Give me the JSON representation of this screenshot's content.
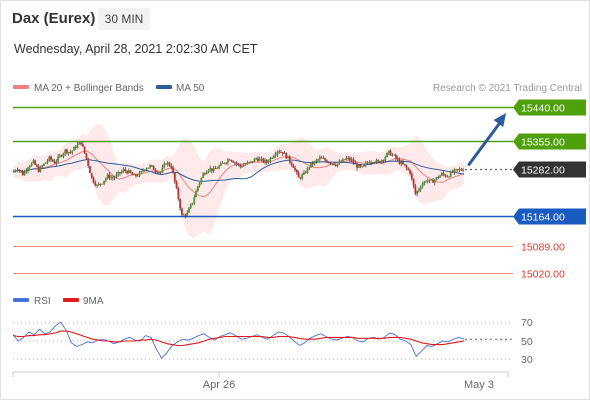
{
  "header": {
    "title": "Dax (Eurex)",
    "timeframe": "30 MIN",
    "datetime": "Wednesday, April 28, 2021 2:02:30 AM CET"
  },
  "chart_data": {
    "type": "candlestick",
    "legend": [
      {
        "label": "MA 20 + Bollinger Bands",
        "color": "#f08080"
      },
      {
        "label": "MA 50",
        "color": "#2e5c9a"
      }
    ],
    "credit": "Research © 2021 Trading Central",
    "y_range": [
      14970,
      15470
    ],
    "levels": [
      {
        "value": 15440.0,
        "label": "15440.00",
        "kind": "resistance",
        "color": "#4ea10d"
      },
      {
        "value": 15355.0,
        "label": "15355.00",
        "kind": "resistance",
        "color": "#4ea10d"
      },
      {
        "value": 15282.0,
        "label": "15282.00",
        "kind": "last",
        "color": "#333333"
      },
      {
        "value": 15164.0,
        "label": "15164.00",
        "kind": "support",
        "color": "#1a5bc2"
      },
      {
        "value": 15089.0,
        "label": "15089.00",
        "kind": "support",
        "color": "#e23b2e"
      },
      {
        "value": 15020.0,
        "label": "15020.00",
        "kind": "support",
        "color": "#e23b2e"
      }
    ],
    "x_ticks": [
      "Apr 26",
      "May 3"
    ],
    "rsi": {
      "legend": [
        {
          "label": "RSI",
          "color": "#4a73d9"
        },
        {
          "label": "9MA",
          "color": "#e31b1b"
        }
      ],
      "ticks": [
        "70",
        "50",
        "30"
      ],
      "range": [
        20,
        80
      ]
    },
    "price_path": [
      15275,
      15285,
      15270,
      15290,
      15300,
      15280,
      15295,
      15310,
      15300,
      15315,
      15330,
      15325,
      15340,
      15350,
      15310,
      15260,
      15240,
      15250,
      15265,
      15260,
      15270,
      15280,
      15275,
      15265,
      15270,
      15285,
      15290,
      15280,
      15275,
      15300,
      15290,
      15230,
      15165,
      15170,
      15200,
      15240,
      15270,
      15285,
      15280,
      15290,
      15300,
      15310,
      15300,
      15290,
      15295,
      15300,
      15310,
      15305,
      15300,
      15315,
      15330,
      15325,
      15310,
      15290,
      15260,
      15270,
      15290,
      15300,
      15310,
      15305,
      15300,
      15295,
      15300,
      15310,
      15305,
      15290,
      15285,
      15300,
      15305,
      15300,
      15310,
      15325,
      15315,
      15300,
      15290,
      15275,
      15220,
      15240,
      15255,
      15250,
      15260,
      15270,
      15265,
      15275,
      15280,
      15282
    ],
    "rsi_path": [
      57,
      50,
      54,
      60,
      57,
      63,
      58,
      60,
      67,
      71,
      62,
      48,
      44,
      46,
      49,
      48,
      51,
      52,
      50,
      47,
      49,
      52,
      54,
      51,
      50,
      56,
      54,
      41,
      31,
      37,
      45,
      49,
      52,
      51,
      53,
      56,
      58,
      54,
      51,
      55,
      57,
      59,
      56,
      52,
      53,
      55,
      57,
      54,
      52,
      56,
      60,
      59,
      55,
      50,
      45,
      48,
      53,
      56,
      58,
      55,
      52,
      51,
      53,
      55,
      54,
      50,
      49,
      53,
      54,
      52,
      54,
      59,
      57,
      52,
      50,
      46,
      33,
      39,
      45,
      44,
      47,
      50,
      49,
      52,
      54,
      52
    ],
    "rsi_ma_path": [
      56,
      55,
      55,
      56,
      56,
      57,
      57,
      58,
      59,
      61,
      61,
      60,
      58,
      56,
      54,
      52,
      51,
      50,
      50,
      49,
      49,
      50,
      50,
      50,
      51,
      51,
      52,
      51,
      49,
      47,
      46,
      45,
      45,
      46,
      47,
      48,
      50,
      52,
      53,
      54,
      55,
      55,
      55,
      55,
      55,
      55,
      55,
      55,
      54,
      54,
      55,
      55,
      55,
      54,
      53,
      52,
      52,
      52,
      53,
      54,
      54,
      54,
      54,
      54,
      54,
      53,
      53,
      53,
      53,
      53,
      53,
      54,
      54,
      54,
      53,
      52,
      50,
      48,
      47,
      46,
      46,
      46,
      47,
      48,
      49,
      50
    ],
    "projection": {
      "from": 15282,
      "to": 15440
    }
  }
}
